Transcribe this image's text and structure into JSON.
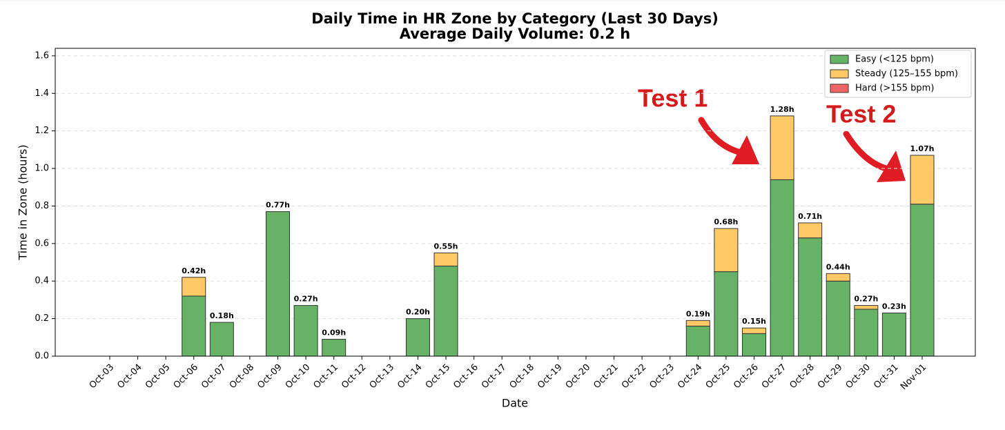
{
  "chart_data": {
    "type": "bar",
    "stacked": true,
    "title": "Daily Time in HR Zone by Category (Last 30 Days)",
    "subtitle": "Average Daily Volume: 0.2 h",
    "x_label": "Date",
    "y_label": "Time in Zone (hours)",
    "categories": [
      "Oct-03",
      "Oct-04",
      "Oct-05",
      "Oct-06",
      "Oct-07",
      "Oct-08",
      "Oct-09",
      "Oct-10",
      "Oct-11",
      "Oct-12",
      "Oct-13",
      "Oct-14",
      "Oct-15",
      "Oct-16",
      "Oct-17",
      "Oct-18",
      "Oct-19",
      "Oct-20",
      "Oct-21",
      "Oct-22",
      "Oct-23",
      "Oct-24",
      "Oct-25",
      "Oct-26",
      "Oct-27",
      "Oct-28",
      "Oct-29",
      "Oct-30",
      "Oct-31",
      "Nov-01"
    ],
    "series": [
      {
        "name": "Easy (<125 bpm)",
        "color": "#66b266",
        "values": [
          0,
          0,
          0,
          0.32,
          0.18,
          0,
          0.77,
          0.27,
          0.09,
          0,
          0,
          0.2,
          0.48,
          0,
          0,
          0,
          0,
          0,
          0,
          0,
          0,
          0.16,
          0.45,
          0.12,
          0.94,
          0.63,
          0.4,
          0.25,
          0.23,
          0.81
        ]
      },
      {
        "name": "Steady (125–155 bpm)",
        "color": "#ffc966",
        "values": [
          0,
          0,
          0,
          0.1,
          0,
          0,
          0,
          0,
          0,
          0,
          0,
          0,
          0.07,
          0,
          0,
          0,
          0,
          0,
          0,
          0,
          0,
          0.03,
          0.23,
          0.03,
          0.34,
          0.08,
          0.04,
          0.02,
          0,
          0.26
        ]
      },
      {
        "name": "Hard (>155 bpm)",
        "color": "#f06666",
        "values": [
          0,
          0,
          0,
          0,
          0,
          0,
          0,
          0,
          0,
          0,
          0,
          0,
          0,
          0,
          0,
          0,
          0,
          0,
          0,
          0,
          0,
          0,
          0,
          0,
          0,
          0,
          0,
          0,
          0,
          0
        ]
      }
    ],
    "totals": {
      "values": [
        null,
        null,
        null,
        0.42,
        0.18,
        null,
        0.77,
        0.27,
        0.09,
        null,
        null,
        0.2,
        0.55,
        null,
        null,
        null,
        null,
        null,
        null,
        null,
        null,
        0.19,
        0.68,
        0.15,
        1.28,
        0.71,
        0.44,
        0.27,
        0.23,
        1.07
      ],
      "value_labels": [
        null,
        null,
        null,
        "0.42h",
        "0.18h",
        null,
        "0.77h",
        "0.27h",
        "0.09h",
        null,
        null,
        "0.20h",
        "0.55h",
        null,
        null,
        null,
        null,
        null,
        null,
        null,
        null,
        "0.19h",
        "0.68h",
        "0.15h",
        "1.28h",
        "0.71h",
        "0.44h",
        "0.27h",
        "0.23h",
        "1.07h"
      ]
    },
    "ylim": [
      0,
      1.64
    ],
    "yticks": [
      {
        "value": 0,
        "label": "0.0"
      },
      {
        "value": 0.2,
        "label": "0.2"
      },
      {
        "value": 0.4,
        "label": "0.4"
      },
      {
        "value": 0.6,
        "label": "0.6"
      },
      {
        "value": 0.8,
        "label": "0.8"
      },
      {
        "value": 1,
        "label": "1.0"
      },
      {
        "value": 1.2,
        "label": "1.2"
      },
      {
        "value": 1.4,
        "label": "1.4"
      },
      {
        "value": 1.6,
        "label": "1.6"
      }
    ],
    "grid": true,
    "legend": "upper right",
    "annotations": [
      "Test 1",
      "Test 2"
    ]
  }
}
